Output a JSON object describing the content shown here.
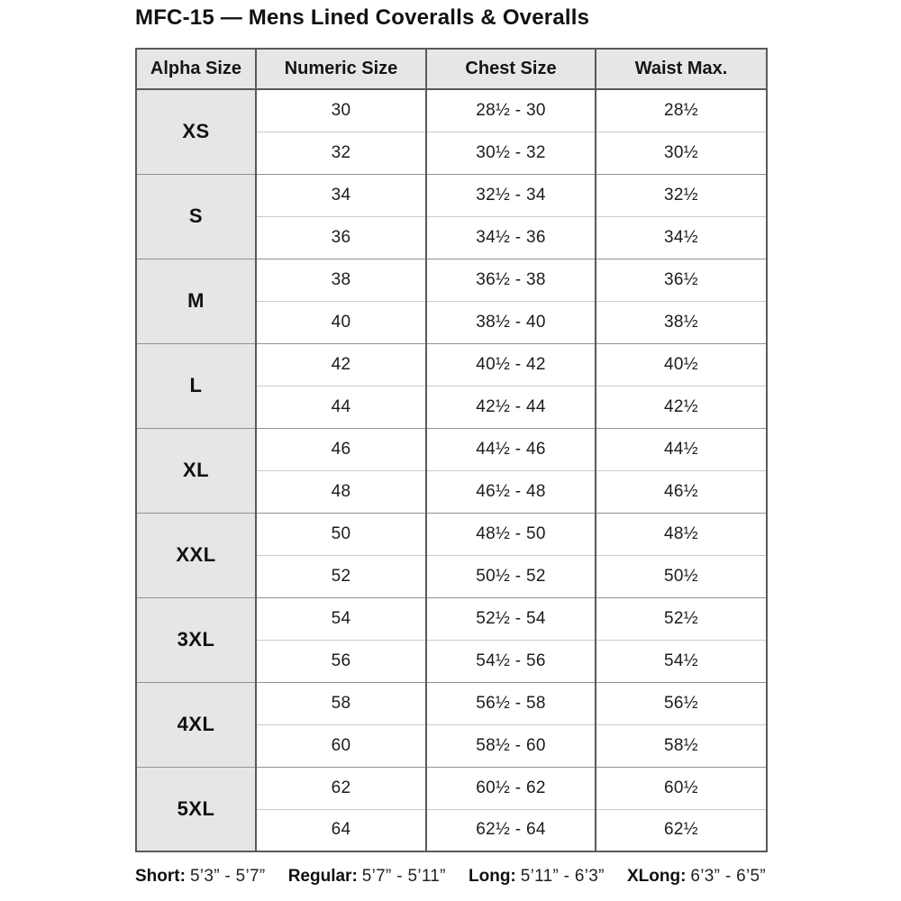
{
  "title": "MFC-15 — Mens Lined Coveralls & Overalls",
  "table": {
    "headers": {
      "alpha": "Alpha Size",
      "numeric": "Numeric Size",
      "chest": "Chest Size",
      "waist": "Waist Max."
    },
    "groups": [
      {
        "alpha": "XS",
        "rows": [
          {
            "numeric": "30",
            "chest": "28½ - 30",
            "waist": "28½"
          },
          {
            "numeric": "32",
            "chest": "30½ - 32",
            "waist": "30½"
          }
        ]
      },
      {
        "alpha": "S",
        "rows": [
          {
            "numeric": "34",
            "chest": "32½ - 34",
            "waist": "32½"
          },
          {
            "numeric": "36",
            "chest": "34½ - 36",
            "waist": "34½"
          }
        ]
      },
      {
        "alpha": "M",
        "rows": [
          {
            "numeric": "38",
            "chest": "36½ - 38",
            "waist": "36½"
          },
          {
            "numeric": "40",
            "chest": "38½ - 40",
            "waist": "38½"
          }
        ]
      },
      {
        "alpha": "L",
        "rows": [
          {
            "numeric": "42",
            "chest": "40½ - 42",
            "waist": "40½"
          },
          {
            "numeric": "44",
            "chest": "42½ - 44",
            "waist": "42½"
          }
        ]
      },
      {
        "alpha": "XL",
        "rows": [
          {
            "numeric": "46",
            "chest": "44½ - 46",
            "waist": "44½"
          },
          {
            "numeric": "48",
            "chest": "46½ - 48",
            "waist": "46½"
          }
        ]
      },
      {
        "alpha": "XXL",
        "rows": [
          {
            "numeric": "50",
            "chest": "48½ - 50",
            "waist": "48½"
          },
          {
            "numeric": "52",
            "chest": "50½ - 52",
            "waist": "50½"
          }
        ]
      },
      {
        "alpha": "3XL",
        "rows": [
          {
            "numeric": "54",
            "chest": "52½ - 54",
            "waist": "52½"
          },
          {
            "numeric": "56",
            "chest": "54½ - 56",
            "waist": "54½"
          }
        ]
      },
      {
        "alpha": "4XL",
        "rows": [
          {
            "numeric": "58",
            "chest": "56½ - 58",
            "waist": "56½"
          },
          {
            "numeric": "60",
            "chest": "58½ - 60",
            "waist": "58½"
          }
        ]
      },
      {
        "alpha": "5XL",
        "rows": [
          {
            "numeric": "62",
            "chest": "60½ - 62",
            "waist": "60½"
          },
          {
            "numeric": "64",
            "chest": "62½ - 64",
            "waist": "62½"
          }
        ]
      }
    ]
  },
  "footer": {
    "entries": [
      {
        "label": "Short:",
        "range": "5’3” - 5’7”"
      },
      {
        "label": "Regular:",
        "range": "5’7” - 5’11”"
      },
      {
        "label": "Long:",
        "range": "5’11” - 6’3”"
      },
      {
        "label": "XLong:",
        "range": "6’3” - 6’5”"
      }
    ]
  },
  "colors": {
    "cell_fill": "#e6e6e6",
    "border_dark": "#58595b",
    "border_mid": "#8f9194",
    "border_light": "#c9cacb",
    "text": "#1a1a1a"
  }
}
